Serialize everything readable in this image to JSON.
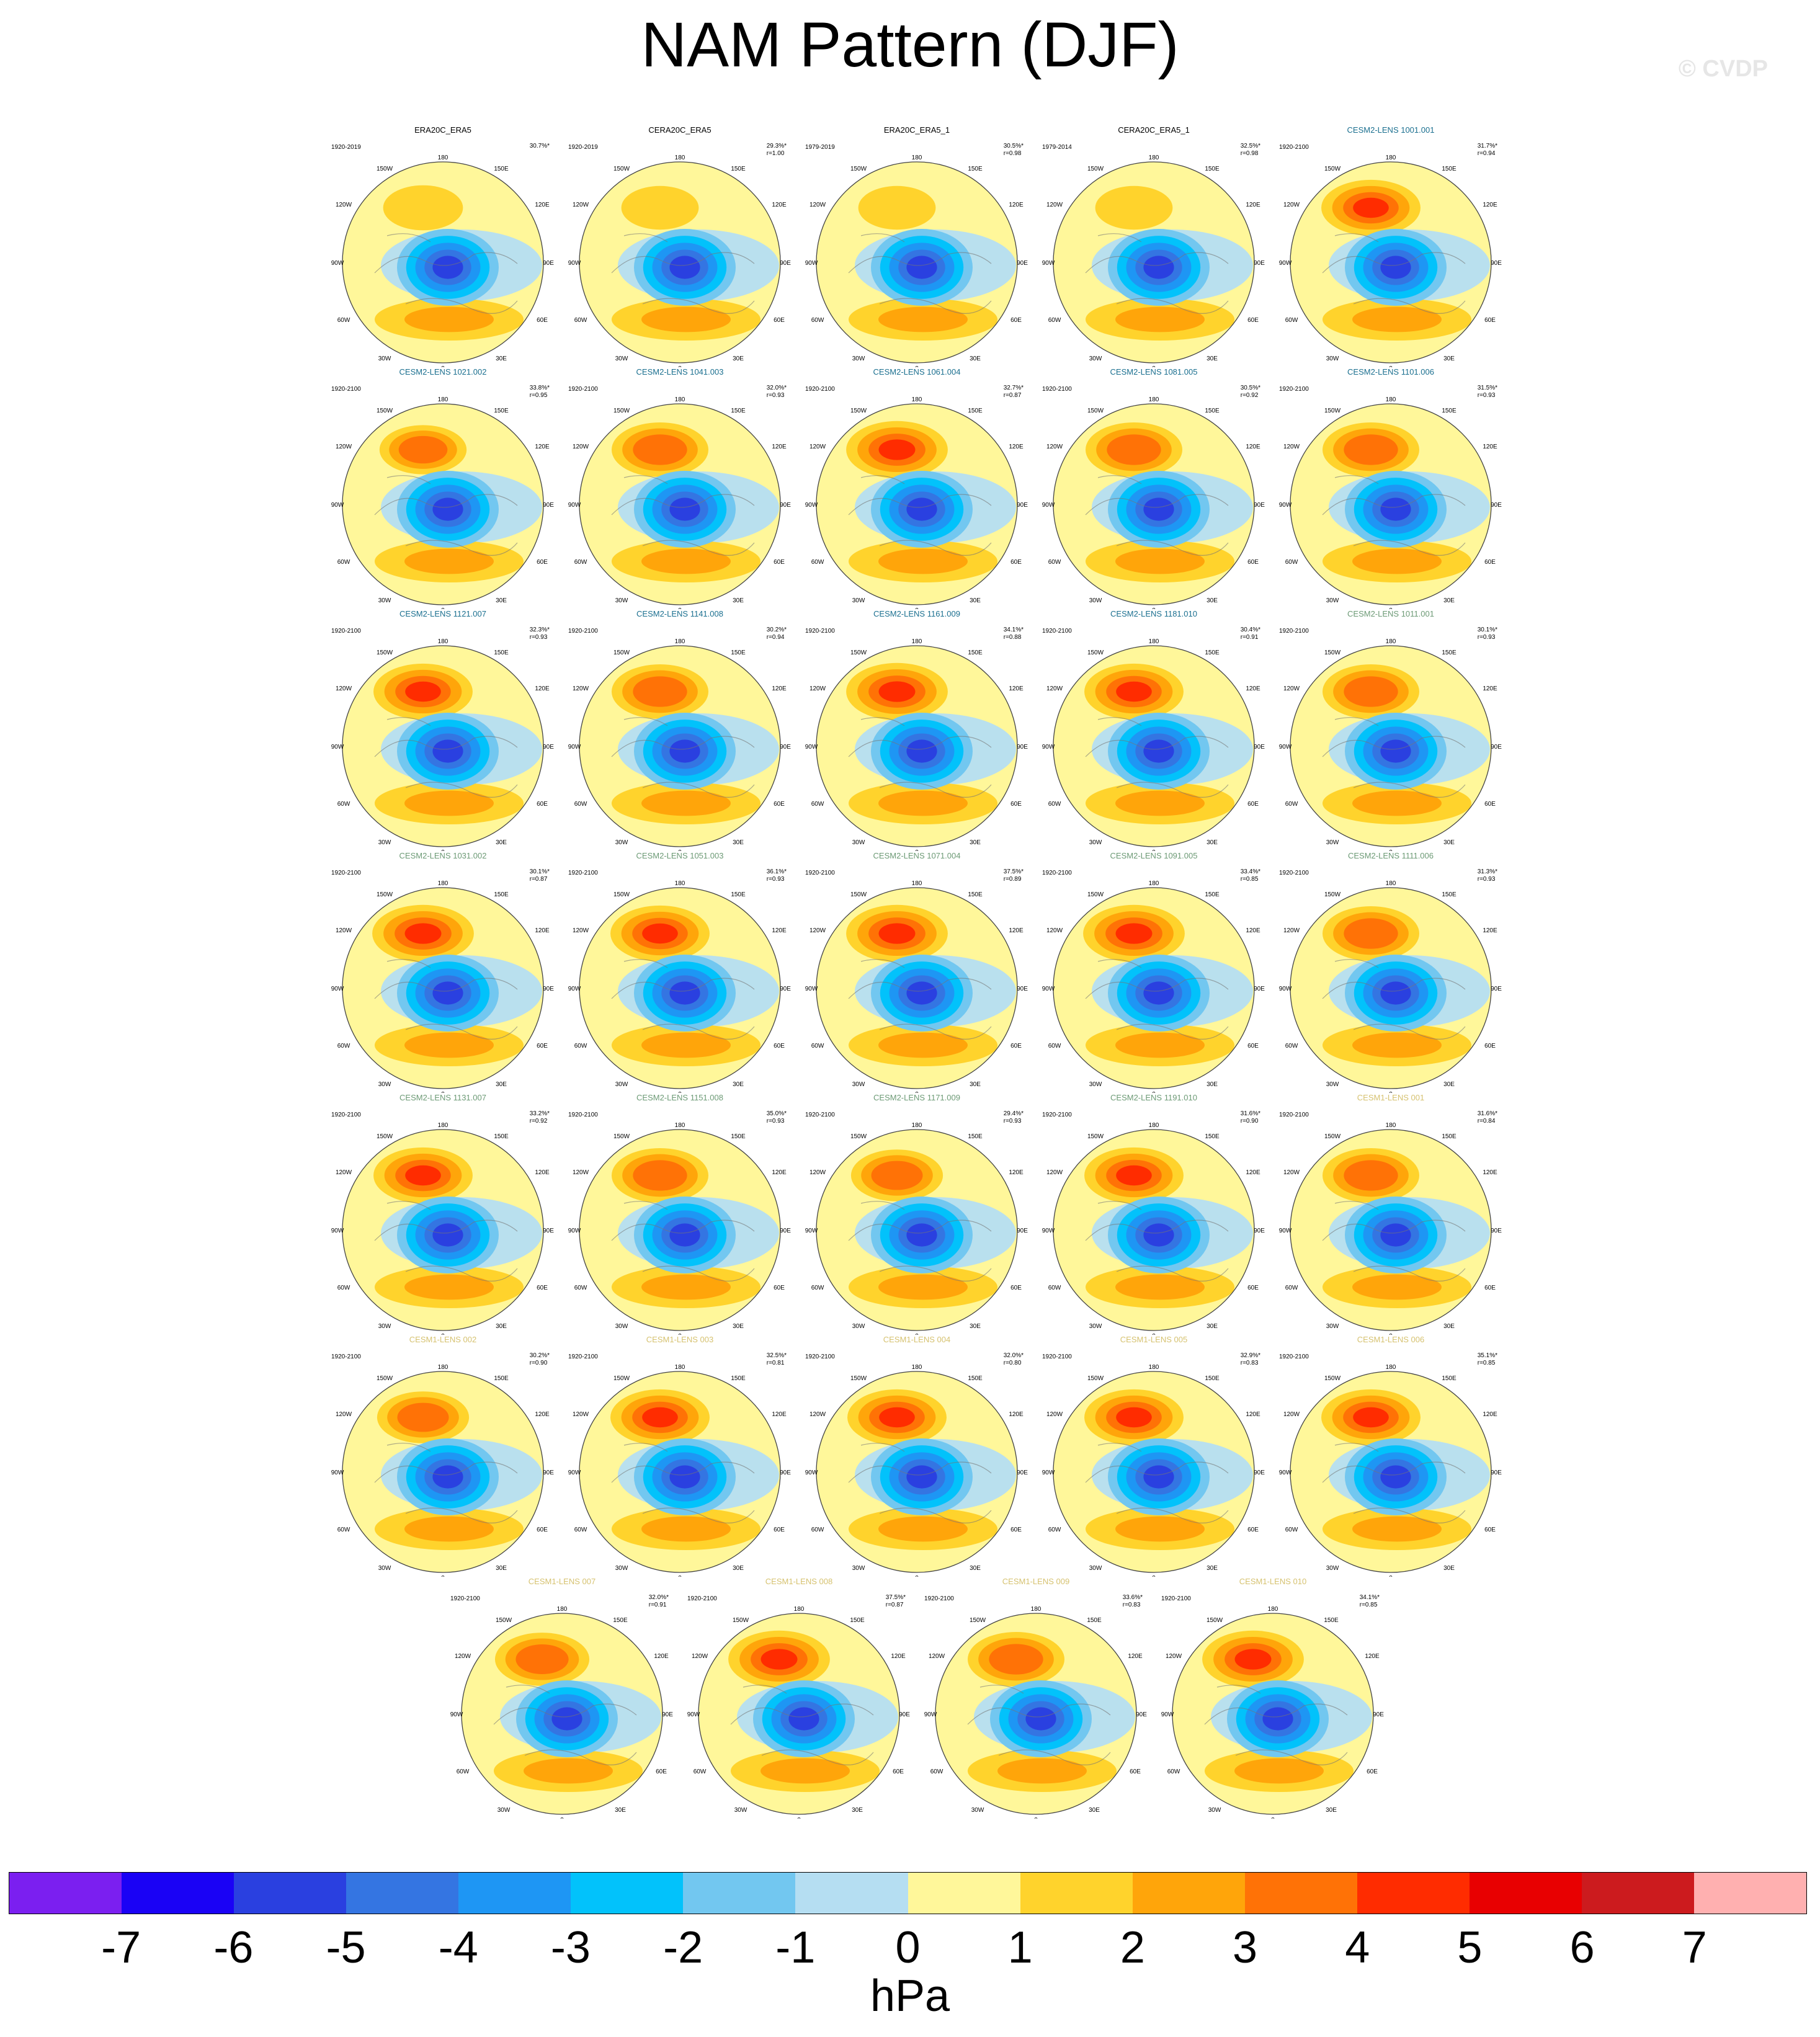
{
  "title": "NAM Pattern (DJF)",
  "watermark": "© CVDP",
  "title_colors": {
    "observations": "#000000",
    "CESM2 series 1": "#1a6f8f",
    "CESM2 series 2": "#6c9a75",
    "CESM1": "#d6c270"
  },
  "panels": [
    {
      "title": "ERA20C_ERA5",
      "years": "1920-2019",
      "pct": "30.7%*",
      "r": "",
      "group": "observations",
      "pos": 0.45
    },
    {
      "title": "CERA20C_ERA5",
      "years": "1920-2019",
      "pct": "29.3%*",
      "r": "r=1.00",
      "group": "observations",
      "pos": 0.4
    },
    {
      "title": "ERA20C_ERA5_1",
      "years": "1979-2019",
      "pct": "30.5%*",
      "r": "r=0.98",
      "group": "observations",
      "pos": 0.4
    },
    {
      "title": "CERA20C_ERA5_1",
      "years": "1979-2014",
      "pct": "32.5%*",
      "r": "r=0.98",
      "group": "observations",
      "pos": 0.4
    },
    {
      "title": "CESM2-LENS 1001.001",
      "years": "1920-2100",
      "pct": "31.7%*",
      "r": "r=0.94",
      "group": "CESM2 series 1",
      "pos": 0.85
    },
    {
      "title": "CESM2-LENS 1021.002",
      "years": "1920-2100",
      "pct": "33.8%*",
      "r": "r=0.95",
      "group": "CESM2 series 1",
      "pos": 0.6
    },
    {
      "title": "CESM2-LENS 1041.003",
      "years": "1920-2100",
      "pct": "32.0%*",
      "r": "r=0.93",
      "group": "CESM2 series 1",
      "pos": 0.8
    },
    {
      "title": "CESM2-LENS 1061.004",
      "years": "1920-2100",
      "pct": "32.7%*",
      "r": "r=0.87",
      "group": "CESM2 series 1",
      "pos": 0.9
    },
    {
      "title": "CESM2-LENS 1081.005",
      "years": "1920-2100",
      "pct": "30.5%*",
      "r": "r=0.92",
      "group": "CESM2 series 1",
      "pos": 0.8
    },
    {
      "title": "CESM2-LENS 1101.006",
      "years": "1920-2100",
      "pct": "31.5%*",
      "r": "r=0.93",
      "group": "CESM2 series 1",
      "pos": 0.8
    },
    {
      "title": "CESM2-LENS 1121.007",
      "years": "1920-2100",
      "pct": "32.3%*",
      "r": "r=0.93",
      "group": "CESM2 series 1",
      "pos": 0.85
    },
    {
      "title": "CESM2-LENS 1141.008",
      "years": "1920-2100",
      "pct": "30.2%*",
      "r": "r=0.94",
      "group": "CESM2 series 1",
      "pos": 0.8
    },
    {
      "title": "CESM2-LENS 1161.009",
      "years": "1920-2100",
      "pct": "34.1%*",
      "r": "r=0.88",
      "group": "CESM2 series 1",
      "pos": 0.9
    },
    {
      "title": "CESM2-LENS 1181.010",
      "years": "1920-2100",
      "pct": "30.4%*",
      "r": "r=0.91",
      "group": "CESM2 series 1",
      "pos": 0.85
    },
    {
      "title": "CESM2-LENS 1011.001",
      "years": "1920-2100",
      "pct": "30.1%*",
      "r": "r=0.93",
      "group": "CESM2 series 2",
      "pos": 0.8
    },
    {
      "title": "CESM2-LENS 1031.002",
      "years": "1920-2100",
      "pct": "30.1%*",
      "r": "r=0.87",
      "group": "CESM2 series 2",
      "pos": 0.9
    },
    {
      "title": "CESM2-LENS 1051.003",
      "years": "1920-2100",
      "pct": "36.1%*",
      "r": "r=0.93",
      "group": "CESM2 series 2",
      "pos": 0.85
    },
    {
      "title": "CESM2-LENS 1071.004",
      "years": "1920-2100",
      "pct": "37.5%*",
      "r": "r=0.89",
      "group": "CESM2 series 2",
      "pos": 0.9
    },
    {
      "title": "CESM2-LENS 1091.005",
      "years": "1920-2100",
      "pct": "33.4%*",
      "r": "r=0.85",
      "group": "CESM2 series 2",
      "pos": 0.9
    },
    {
      "title": "CESM2-LENS 1111.006",
      "years": "1920-2100",
      "pct": "31.3%*",
      "r": "r=0.93",
      "group": "CESM2 series 2",
      "pos": 0.8
    },
    {
      "title": "CESM2-LENS 1131.007",
      "years": "1920-2100",
      "pct": "33.2%*",
      "r": "r=0.92",
      "group": "CESM2 series 2",
      "pos": 0.85
    },
    {
      "title": "CESM2-LENS 1151.008",
      "years": "1920-2100",
      "pct": "35.0%*",
      "r": "r=0.93",
      "group": "CESM2 series 2",
      "pos": 0.8
    },
    {
      "title": "CESM2-LENS 1171.009",
      "years": "1920-2100",
      "pct": "29.4%*",
      "r": "r=0.93",
      "group": "CESM2 series 2",
      "pos": 0.7
    },
    {
      "title": "CESM2-LENS 1191.010",
      "years": "1920-2100",
      "pct": "31.6%*",
      "r": "r=0.90",
      "group": "CESM2 series 2",
      "pos": 0.85
    },
    {
      "title": "CESM1-LENS 001",
      "years": "1920-2100",
      "pct": "31.6%*",
      "r": "r=0.84",
      "group": "CESM1",
      "pos": 0.8
    },
    {
      "title": "CESM1-LENS 002",
      "years": "1920-2100",
      "pct": "30.2%*",
      "r": "r=0.90",
      "group": "CESM1",
      "pos": 0.7
    },
    {
      "title": "CESM1-LENS 003",
      "years": "1920-2100",
      "pct": "32.5%*",
      "r": "r=0.81",
      "group": "CESM1",
      "pos": 0.85
    },
    {
      "title": "CESM1-LENS 004",
      "years": "1920-2100",
      "pct": "32.0%*",
      "r": "r=0.80",
      "group": "CESM1",
      "pos": 0.85
    },
    {
      "title": "CESM1-LENS 005",
      "years": "1920-2100",
      "pct": "32.9%*",
      "r": "r=0.83",
      "group": "CESM1",
      "pos": 0.85
    },
    {
      "title": "CESM1-LENS 006",
      "years": "1920-2100",
      "pct": "35.1%*",
      "r": "r=0.85",
      "group": "CESM1",
      "pos": 0.85
    },
    {
      "title": "CESM1-LENS 007",
      "years": "1920-2100",
      "pct": "32.0%*",
      "r": "r=0.91",
      "group": "CESM1",
      "pos": 0.75
    },
    {
      "title": "CESM1-LENS 008",
      "years": "1920-2100",
      "pct": "37.5%*",
      "r": "r=0.87",
      "group": "CESM1",
      "pos": 0.9
    },
    {
      "title": "CESM1-LENS 009",
      "years": "1920-2100",
      "pct": "33.6%*",
      "r": "r=0.83",
      "group": "CESM1",
      "pos": 0.8
    },
    {
      "title": "CESM1-LENS 010",
      "years": "1920-2100",
      "pct": "34.1%*",
      "r": "r=0.85",
      "group": "CESM1",
      "pos": 0.9
    }
  ],
  "map_labels": {
    "lon_top": "180",
    "lon_150w": "150W",
    "lon_150e": "150E",
    "lon_120w": "120W",
    "lon_120e": "120E",
    "lon_90w": "90W",
    "lon_90e": "90E",
    "lon_60w": "60W",
    "lon_60e": "60E",
    "lon_30w": "30W",
    "lon_30e": "30E",
    "lon_bottom": "0"
  },
  "colorbar": {
    "units": "hPa",
    "ticks": [
      "-7",
      "-6",
      "-5",
      "-4",
      "-3",
      "-2",
      "-1",
      "0",
      "1",
      "2",
      "3",
      "4",
      "5",
      "6",
      "7"
    ],
    "colors": [
      "#7b1ff0",
      "#1a02f5",
      "#2a40e0",
      "#3475e2",
      "#1e96f4",
      "#02c2fb",
      "#72c7f0",
      "#b5def2",
      "#fff79a",
      "#ffd32c",
      "#ffa50a",
      "#ff7206",
      "#ff2c00",
      "#e80001",
      "#cc1b1e",
      "#ffb0b0"
    ]
  }
}
